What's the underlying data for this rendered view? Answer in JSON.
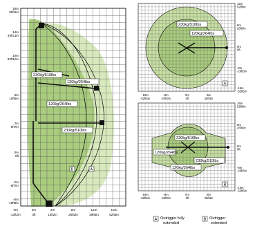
{
  "left_chart": {
    "y_labels": [
      {
        "m": "18m",
        "ft": "59ft1in"
      },
      {
        "m": "14m",
        "ft": "45ft11in"
      },
      {
        "m": "10m",
        "ft": "32ft10in"
      },
      {
        "m": "6m",
        "ft": "19ft8in"
      },
      {
        "m": "2m",
        "ft": "6ft7in"
      },
      {
        "m": "0m",
        "ft": "0ft"
      },
      {
        "m": "-2m",
        "ft": "-6ft7in"
      },
      {
        "m": "-6m",
        "ft": "-19ft8in"
      }
    ],
    "x_labels": [
      {
        "m": "-4m",
        "ft": "-13ft2in"
      },
      {
        "m": "0m",
        "ft": "0ft"
      },
      {
        "m": "4m",
        "ft": "13ft2in"
      },
      {
        "m": "8m",
        "ft": "26ft3in"
      },
      {
        "m": "12m",
        "ft": "39ft5in"
      },
      {
        "m": "16m",
        "ft": "52ft6in"
      }
    ],
    "load_labels": [
      "230kg/510lbs",
      "120kg/264lbs",
      "120kg/264lbs",
      "230kg/510lbs"
    ],
    "zone_a": "A",
    "zone_b": "B"
  },
  "top_right": {
    "y_labels": [
      {
        "m": "16m",
        "ft": "52ft6in"
      },
      {
        "m": "8m",
        "ft": "26ft3in"
      },
      {
        "m": "0m",
        "ft": "0ft"
      },
      {
        "m": "-8m",
        "ft": "-26ft3in"
      },
      {
        "m": "-16m",
        "ft": "-52ft6in"
      }
    ],
    "x_labels": [
      {
        "m": "-16m",
        "ft": "-52ft6in"
      },
      {
        "m": "-8m",
        "ft": "-26ft3in"
      },
      {
        "m": "0m",
        "ft": "0ft"
      },
      {
        "m": "8m",
        "ft": "26ft3in"
      }
    ],
    "load_labels": [
      "230kg/510lbs",
      "120kg/264lbs"
    ],
    "zone": "A"
  },
  "bottom_right": {
    "y_labels": [
      {
        "m": "16m",
        "ft": "52ft6in"
      },
      {
        "m": "8m",
        "ft": "26ft3in"
      },
      {
        "m": "0m",
        "ft": "0ft"
      },
      {
        "m": "-8m",
        "ft": "-26ft3in"
      },
      {
        "m": "-16m",
        "ft": "-52ft6in"
      }
    ],
    "x_labels": [
      {
        "m": "-16m",
        "ft": "-52ft6in"
      },
      {
        "m": "-8m",
        "ft": "-26ft3in"
      },
      {
        "m": "0m",
        "ft": "0ft"
      },
      {
        "m": "8m",
        "ft": "26ft3in"
      }
    ],
    "load_labels": [
      "230kg/510lbs",
      "120kg/264lbs",
      "230kg/510lbs",
      "120kg/264lbs"
    ],
    "zone": "B"
  },
  "legend": {
    "a_key": "A",
    "a_text_1": "Outrigger fully",
    "a_text_2": "extended",
    "b_key": "B",
    "b_text_1": "Outrigger",
    "b_text_2": "extended"
  },
  "colors": {
    "zone_fill": "#c7dfa3",
    "zone_dark": "#a9cc7e",
    "grid": "#555555",
    "machine": "#111111"
  }
}
